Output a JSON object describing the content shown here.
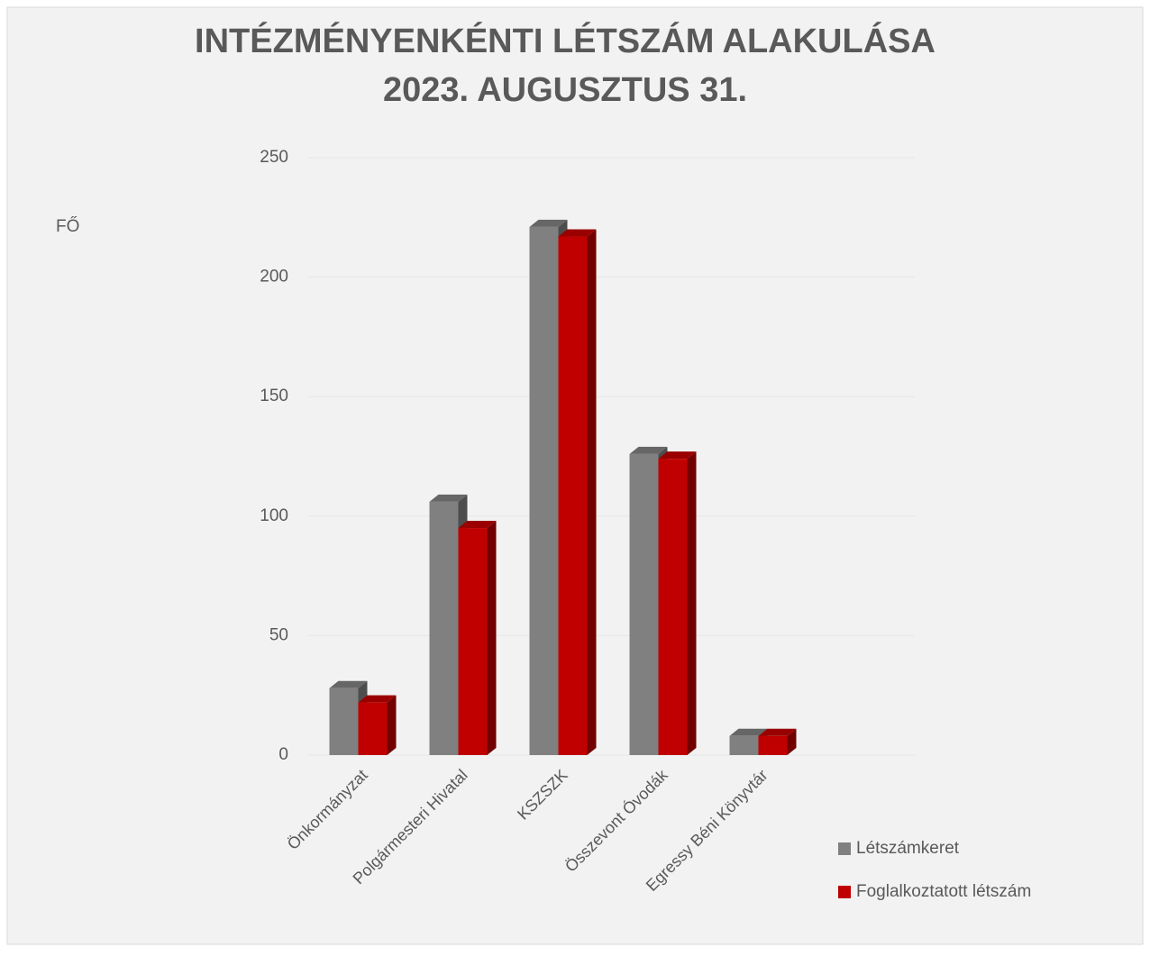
{
  "chart_data": {
    "type": "bar3d",
    "title": [
      "INTÉZMÉNYENKÉNTI LÉTSZÁM ALAKULÁSA",
      "2023. AUGUSZTUS 31."
    ],
    "y_label": "FŐ",
    "categories": [
      "Önkormányzat",
      "Polgármesteri Hivatal",
      "KSZSZK",
      "Összevont Óvodák",
      "Egressy Béni Könyvtár"
    ],
    "series": [
      {
        "name": "Létszámkeret",
        "color": "#808080",
        "values": [
          28,
          106,
          221,
          126,
          8
        ]
      },
      {
        "name": "Foglalkoztatott létszám",
        "color": "#c00000",
        "values": [
          22,
          95,
          217,
          124,
          8
        ]
      }
    ],
    "ylim": [
      0,
      250
    ],
    "yticks": [
      0,
      50,
      100,
      150,
      200,
      250
    ],
    "grid": true,
    "legend": "right"
  }
}
